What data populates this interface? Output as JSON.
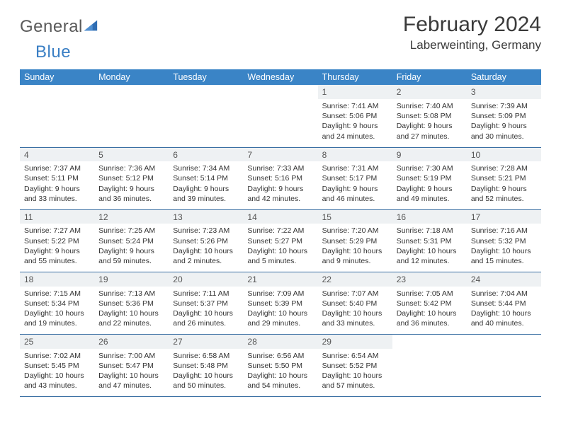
{
  "brand": {
    "word1": "General",
    "word2": "Blue"
  },
  "title": "February 2024",
  "location": "Laberweinting, Germany",
  "colors": {
    "header_bg": "#3a84c6",
    "header_text": "#ffffff",
    "daynum_bg": "#eef1f3",
    "rule": "#3a6fa3",
    "text": "#333333",
    "brand_gray": "#5a5a5a",
    "brand_blue": "#3a7fc4"
  },
  "fonts": {
    "month_title_pt": 30,
    "location_pt": 17,
    "dayheader_pt": 12.5,
    "daynum_pt": 12,
    "detail_pt": 10.5
  },
  "dayHeaders": [
    "Sunday",
    "Monday",
    "Tuesday",
    "Wednesday",
    "Thursday",
    "Friday",
    "Saturday"
  ],
  "weeks": [
    [
      null,
      null,
      null,
      null,
      {
        "n": "1",
        "sr": "7:41 AM",
        "ss": "5:06 PM",
        "dl": "9 hours and 24 minutes."
      },
      {
        "n": "2",
        "sr": "7:40 AM",
        "ss": "5:08 PM",
        "dl": "9 hours and 27 minutes."
      },
      {
        "n": "3",
        "sr": "7:39 AM",
        "ss": "5:09 PM",
        "dl": "9 hours and 30 minutes."
      }
    ],
    [
      {
        "n": "4",
        "sr": "7:37 AM",
        "ss": "5:11 PM",
        "dl": "9 hours and 33 minutes."
      },
      {
        "n": "5",
        "sr": "7:36 AM",
        "ss": "5:12 PM",
        "dl": "9 hours and 36 minutes."
      },
      {
        "n": "6",
        "sr": "7:34 AM",
        "ss": "5:14 PM",
        "dl": "9 hours and 39 minutes."
      },
      {
        "n": "7",
        "sr": "7:33 AM",
        "ss": "5:16 PM",
        "dl": "9 hours and 42 minutes."
      },
      {
        "n": "8",
        "sr": "7:31 AM",
        "ss": "5:17 PM",
        "dl": "9 hours and 46 minutes."
      },
      {
        "n": "9",
        "sr": "7:30 AM",
        "ss": "5:19 PM",
        "dl": "9 hours and 49 minutes."
      },
      {
        "n": "10",
        "sr": "7:28 AM",
        "ss": "5:21 PM",
        "dl": "9 hours and 52 minutes."
      }
    ],
    [
      {
        "n": "11",
        "sr": "7:27 AM",
        "ss": "5:22 PM",
        "dl": "9 hours and 55 minutes."
      },
      {
        "n": "12",
        "sr": "7:25 AM",
        "ss": "5:24 PM",
        "dl": "9 hours and 59 minutes."
      },
      {
        "n": "13",
        "sr": "7:23 AM",
        "ss": "5:26 PM",
        "dl": "10 hours and 2 minutes."
      },
      {
        "n": "14",
        "sr": "7:22 AM",
        "ss": "5:27 PM",
        "dl": "10 hours and 5 minutes."
      },
      {
        "n": "15",
        "sr": "7:20 AM",
        "ss": "5:29 PM",
        "dl": "10 hours and 9 minutes."
      },
      {
        "n": "16",
        "sr": "7:18 AM",
        "ss": "5:31 PM",
        "dl": "10 hours and 12 minutes."
      },
      {
        "n": "17",
        "sr": "7:16 AM",
        "ss": "5:32 PM",
        "dl": "10 hours and 15 minutes."
      }
    ],
    [
      {
        "n": "18",
        "sr": "7:15 AM",
        "ss": "5:34 PM",
        "dl": "10 hours and 19 minutes."
      },
      {
        "n": "19",
        "sr": "7:13 AM",
        "ss": "5:36 PM",
        "dl": "10 hours and 22 minutes."
      },
      {
        "n": "20",
        "sr": "7:11 AM",
        "ss": "5:37 PM",
        "dl": "10 hours and 26 minutes."
      },
      {
        "n": "21",
        "sr": "7:09 AM",
        "ss": "5:39 PM",
        "dl": "10 hours and 29 minutes."
      },
      {
        "n": "22",
        "sr": "7:07 AM",
        "ss": "5:40 PM",
        "dl": "10 hours and 33 minutes."
      },
      {
        "n": "23",
        "sr": "7:05 AM",
        "ss": "5:42 PM",
        "dl": "10 hours and 36 minutes."
      },
      {
        "n": "24",
        "sr": "7:04 AM",
        "ss": "5:44 PM",
        "dl": "10 hours and 40 minutes."
      }
    ],
    [
      {
        "n": "25",
        "sr": "7:02 AM",
        "ss": "5:45 PM",
        "dl": "10 hours and 43 minutes."
      },
      {
        "n": "26",
        "sr": "7:00 AM",
        "ss": "5:47 PM",
        "dl": "10 hours and 47 minutes."
      },
      {
        "n": "27",
        "sr": "6:58 AM",
        "ss": "5:48 PM",
        "dl": "10 hours and 50 minutes."
      },
      {
        "n": "28",
        "sr": "6:56 AM",
        "ss": "5:50 PM",
        "dl": "10 hours and 54 minutes."
      },
      {
        "n": "29",
        "sr": "6:54 AM",
        "ss": "5:52 PM",
        "dl": "10 hours and 57 minutes."
      },
      null,
      null
    ]
  ],
  "labels": {
    "sunrise": "Sunrise: ",
    "sunset": "Sunset: ",
    "daylight": "Daylight: "
  }
}
